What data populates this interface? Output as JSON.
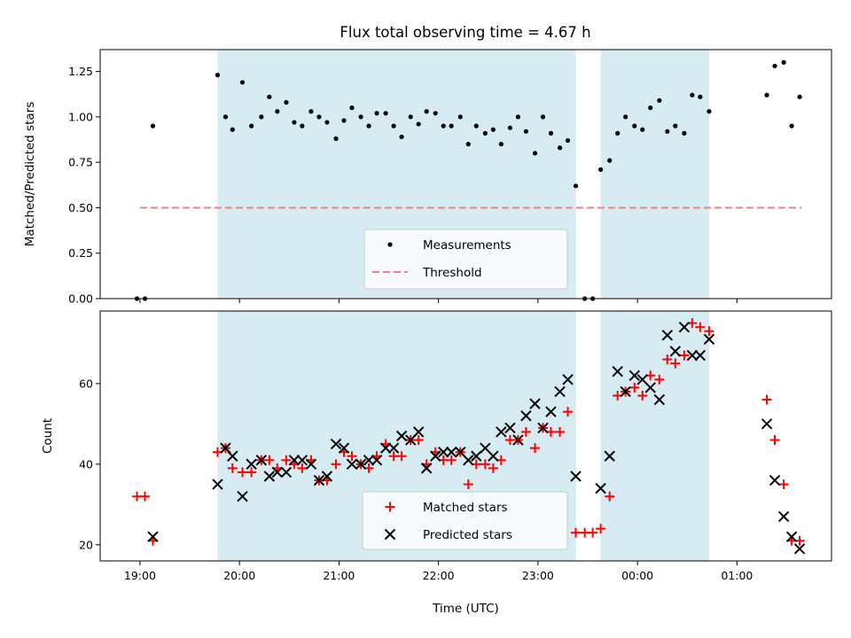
{
  "chart_data": {
    "type": "scatter",
    "title": "Flux total observing time = 4.67 h",
    "xlabel": "Time (UTC)",
    "x_unit": "hours",
    "x_range": [
      18.6,
      25.95
    ],
    "x_ticks": [
      {
        "value": 19,
        "label": "19:00"
      },
      {
        "value": 20,
        "label": "20:00"
      },
      {
        "value": 21,
        "label": "21:00"
      },
      {
        "value": 22,
        "label": "22:00"
      },
      {
        "value": 23,
        "label": "23:00"
      },
      {
        "value": 24,
        "label": "00:00"
      },
      {
        "value": 25,
        "label": "01:00"
      }
    ],
    "shaded_intervals": [
      [
        19.78,
        23.38
      ],
      [
        23.63,
        24.72
      ]
    ],
    "shade_color": "#add8e6",
    "panels": [
      {
        "ylabel": "Matched/Predicted stars",
        "ylim": [
          0,
          1.37
        ],
        "y_ticks": [
          {
            "value": 0,
            "label": "0.00"
          },
          {
            "value": 0.25,
            "label": "0.25"
          },
          {
            "value": 0.5,
            "label": "0.50"
          },
          {
            "value": 0.75,
            "label": "0.75"
          },
          {
            "value": 1.0,
            "label": "1.00"
          },
          {
            "value": 1.25,
            "label": "1.25"
          }
        ],
        "threshold": {
          "name": "Threshold",
          "value": 0.5,
          "x_range": [
            19.0,
            25.65
          ],
          "color": "#f08080"
        },
        "series": [
          {
            "name": "Measurements",
            "marker": "dot",
            "color": "#000000",
            "points": [
              [
                18.97,
                0
              ],
              [
                19.05,
                0
              ],
              [
                19.13,
                0.95
              ],
              [
                19.78,
                1.23
              ],
              [
                19.86,
                1.0
              ],
              [
                19.93,
                0.93
              ],
              [
                20.03,
                1.19
              ],
              [
                20.12,
                0.95
              ],
              [
                20.22,
                1.0
              ],
              [
                20.3,
                1.11
              ],
              [
                20.38,
                1.03
              ],
              [
                20.47,
                1.08
              ],
              [
                20.55,
                0.97
              ],
              [
                20.63,
                0.95
              ],
              [
                20.72,
                1.03
              ],
              [
                20.8,
                1.0
              ],
              [
                20.88,
                0.97
              ],
              [
                20.97,
                0.88
              ],
              [
                21.05,
                0.98
              ],
              [
                21.13,
                1.05
              ],
              [
                21.22,
                1.0
              ],
              [
                21.3,
                0.95
              ],
              [
                21.38,
                1.02
              ],
              [
                21.47,
                1.02
              ],
              [
                21.55,
                0.95
              ],
              [
                21.63,
                0.89
              ],
              [
                21.72,
                1.0
              ],
              [
                21.8,
                0.96
              ],
              [
                21.88,
                1.03
              ],
              [
                21.97,
                1.02
              ],
              [
                22.05,
                0.95
              ],
              [
                22.13,
                0.95
              ],
              [
                22.22,
                1.0
              ],
              [
                22.3,
                0.85
              ],
              [
                22.38,
                0.95
              ],
              [
                22.47,
                0.91
              ],
              [
                22.55,
                0.93
              ],
              [
                22.63,
                0.85
              ],
              [
                22.72,
                0.94
              ],
              [
                22.8,
                1.0
              ],
              [
                22.88,
                0.92
              ],
              [
                22.97,
                0.8
              ],
              [
                23.05,
                1.0
              ],
              [
                23.13,
                0.91
              ],
              [
                23.22,
                0.83
              ],
              [
                23.3,
                0.87
              ],
              [
                23.38,
                0.62
              ],
              [
                23.47,
                0
              ],
              [
                23.55,
                0
              ],
              [
                23.63,
                0.71
              ],
              [
                23.72,
                0.76
              ],
              [
                23.8,
                0.91
              ],
              [
                23.88,
                1.0
              ],
              [
                23.97,
                0.95
              ],
              [
                24.05,
                0.93
              ],
              [
                24.13,
                1.05
              ],
              [
                24.22,
                1.09
              ],
              [
                24.3,
                0.92
              ],
              [
                24.38,
                0.95
              ],
              [
                24.47,
                0.91
              ],
              [
                24.55,
                1.12
              ],
              [
                24.63,
                1.11
              ],
              [
                24.72,
                1.03
              ],
              [
                25.3,
                1.12
              ],
              [
                25.38,
                1.28
              ],
              [
                25.47,
                1.3
              ],
              [
                25.55,
                0.95
              ],
              [
                25.63,
                1.11
              ]
            ]
          }
        ],
        "legend": [
          "Measurements",
          "Threshold"
        ],
        "legend_position": "lower-center"
      },
      {
        "ylabel": "Count",
        "ylim": [
          16,
          78
        ],
        "y_ticks": [
          {
            "value": 20,
            "label": "20"
          },
          {
            "value": 40,
            "label": "40"
          },
          {
            "value": 60,
            "label": "60"
          }
        ],
        "series": [
          {
            "name": "Matched stars",
            "marker": "plus",
            "color": "#ff0000",
            "points": [
              [
                18.97,
                32
              ],
              [
                19.05,
                32
              ],
              [
                19.13,
                21
              ],
              [
                19.78,
                43
              ],
              [
                19.86,
                44
              ],
              [
                19.93,
                39
              ],
              [
                20.03,
                38
              ],
              [
                20.12,
                38
              ],
              [
                20.22,
                41
              ],
              [
                20.3,
                41
              ],
              [
                20.38,
                39
              ],
              [
                20.47,
                41
              ],
              [
                20.55,
                40
              ],
              [
                20.63,
                39
              ],
              [
                20.72,
                41
              ],
              [
                20.8,
                36
              ],
              [
                20.88,
                36
              ],
              [
                20.97,
                40
              ],
              [
                21.05,
                43
              ],
              [
                21.13,
                42
              ],
              [
                21.22,
                40
              ],
              [
                21.3,
                39
              ],
              [
                21.38,
                42
              ],
              [
                21.47,
                45
              ],
              [
                21.55,
                42
              ],
              [
                21.63,
                42
              ],
              [
                21.72,
                46
              ],
              [
                21.8,
                46
              ],
              [
                21.88,
                40
              ],
              [
                21.97,
                43
              ],
              [
                22.05,
                41
              ],
              [
                22.13,
                41
              ],
              [
                22.22,
                43
              ],
              [
                22.3,
                35
              ],
              [
                22.38,
                40
              ],
              [
                22.47,
                40
              ],
              [
                22.55,
                39
              ],
              [
                22.63,
                41
              ],
              [
                22.72,
                46
              ],
              [
                22.8,
                46
              ],
              [
                22.88,
                48
              ],
              [
                22.97,
                44
              ],
              [
                23.05,
                49
              ],
              [
                23.13,
                48
              ],
              [
                23.22,
                48
              ],
              [
                23.3,
                53
              ],
              [
                23.38,
                23
              ],
              [
                23.47,
                23
              ],
              [
                23.55,
                23
              ],
              [
                23.63,
                24
              ],
              [
                23.72,
                32
              ],
              [
                23.8,
                57
              ],
              [
                23.88,
                58
              ],
              [
                23.97,
                59
              ],
              [
                24.05,
                57
              ],
              [
                24.13,
                62
              ],
              [
                24.22,
                61
              ],
              [
                24.3,
                66
              ],
              [
                24.38,
                65
              ],
              [
                24.47,
                67
              ],
              [
                24.55,
                75
              ],
              [
                24.63,
                74
              ],
              [
                24.72,
                73
              ],
              [
                25.3,
                56
              ],
              [
                25.38,
                46
              ],
              [
                25.47,
                35
              ],
              [
                25.55,
                21
              ],
              [
                25.63,
                21
              ]
            ]
          },
          {
            "name": "Predicted stars",
            "marker": "x",
            "color": "#000000",
            "points": [
              [
                19.13,
                22
              ],
              [
                19.78,
                35
              ],
              [
                19.86,
                44
              ],
              [
                19.93,
                42
              ],
              [
                20.03,
                32
              ],
              [
                20.12,
                40
              ],
              [
                20.22,
                41
              ],
              [
                20.3,
                37
              ],
              [
                20.38,
                38
              ],
              [
                20.47,
                38
              ],
              [
                20.55,
                41
              ],
              [
                20.63,
                41
              ],
              [
                20.72,
                40
              ],
              [
                20.8,
                36
              ],
              [
                20.88,
                37
              ],
              [
                20.97,
                45
              ],
              [
                21.05,
                44
              ],
              [
                21.13,
                40
              ],
              [
                21.22,
                40
              ],
              [
                21.3,
                41
              ],
              [
                21.38,
                41
              ],
              [
                21.47,
                44
              ],
              [
                21.55,
                44
              ],
              [
                21.63,
                47
              ],
              [
                21.72,
                46
              ],
              [
                21.8,
                48
              ],
              [
                21.88,
                39
              ],
              [
                21.97,
                42
              ],
              [
                22.05,
                43
              ],
              [
                22.13,
                43
              ],
              [
                22.22,
                43
              ],
              [
                22.3,
                41
              ],
              [
                22.38,
                42
              ],
              [
                22.47,
                44
              ],
              [
                22.55,
                42
              ],
              [
                22.63,
                48
              ],
              [
                22.72,
                49
              ],
              [
                22.8,
                46
              ],
              [
                22.88,
                52
              ],
              [
                22.97,
                55
              ],
              [
                23.05,
                49
              ],
              [
                23.13,
                53
              ],
              [
                23.22,
                58
              ],
              [
                23.3,
                61
              ],
              [
                23.38,
                37
              ],
              [
                23.63,
                34
              ],
              [
                23.72,
                42
              ],
              [
                23.8,
                63
              ],
              [
                23.88,
                58
              ],
              [
                23.97,
                62
              ],
              [
                24.05,
                61
              ],
              [
                24.13,
                59
              ],
              [
                24.22,
                56
              ],
              [
                24.3,
                72
              ],
              [
                24.38,
                68
              ],
              [
                24.47,
                74
              ],
              [
                24.55,
                67
              ],
              [
                24.63,
                67
              ],
              [
                24.72,
                71
              ],
              [
                25.3,
                50
              ],
              [
                25.38,
                36
              ],
              [
                25.47,
                27
              ],
              [
                25.55,
                22
              ],
              [
                25.63,
                19
              ]
            ]
          }
        ],
        "legend": [
          "Matched stars",
          "Predicted stars"
        ],
        "legend_position": "lower-center"
      }
    ]
  }
}
